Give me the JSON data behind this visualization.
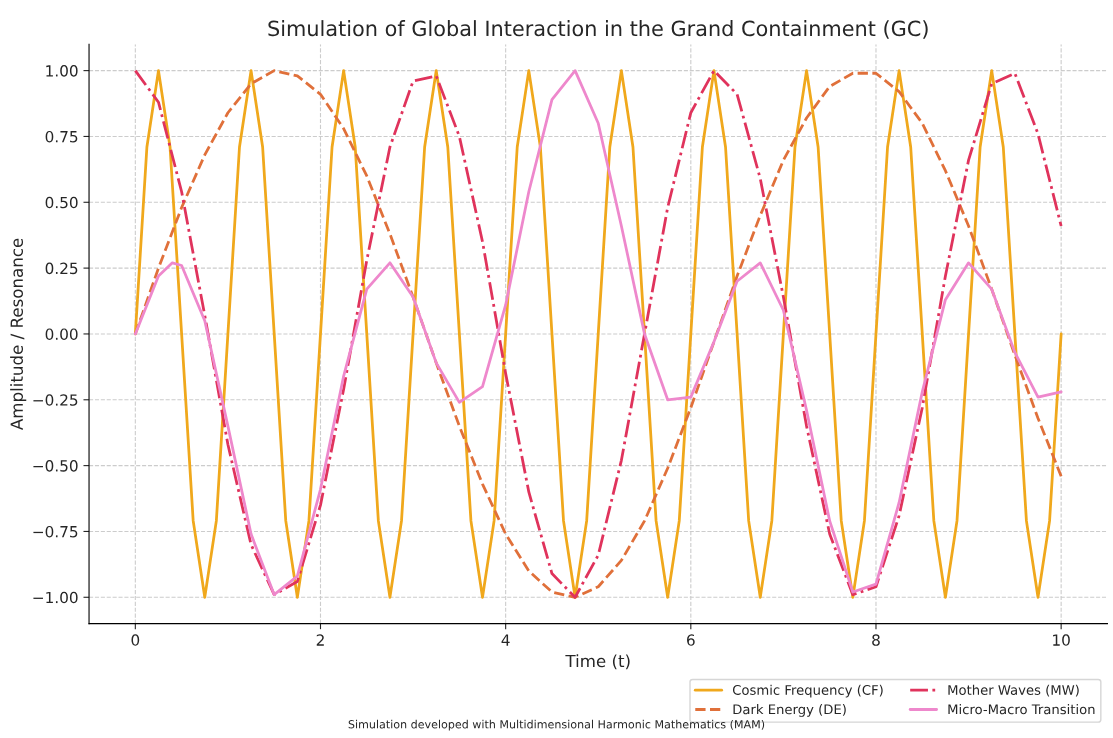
{
  "chart_data": {
    "type": "line",
    "title": "Simulation of Global Interaction in the Grand Containment (GC)",
    "xlabel": "Time (t)",
    "ylabel": "Amplitude / Resonance",
    "annotations": [
      "Simulation developed with Multidimensional Harmonic Mathematics (MAM)"
    ],
    "xlim": [
      -0.5,
      10.5
    ],
    "ylim": [
      -1.1,
      1.1
    ],
    "xticks": [
      0,
      2,
      4,
      6,
      8,
      10
    ],
    "yticks": [
      {
        "value": -1,
        "label": "−1.00"
      },
      {
        "value": -0.75,
        "label": "−0.75"
      },
      {
        "value": -0.5,
        "label": "−0.50"
      },
      {
        "value": -0.25,
        "label": "−0.25"
      },
      {
        "value": 0,
        "label": "0.00"
      },
      {
        "value": 0.25,
        "label": "0.25"
      },
      {
        "value": 0.5,
        "label": "0.50"
      },
      {
        "value": 0.75,
        "label": "0.75"
      },
      {
        "value": 1,
        "label": "1.00"
      }
    ],
    "grid": true,
    "legend": "bottom right",
    "series": [
      {
        "name": "Cosmic Frequency (CF)",
        "color": "#f0a81c",
        "line_style": "solid",
        "x": [
          0,
          0.125,
          0.25,
          0.375,
          0.5,
          0.625,
          0.75,
          0.875,
          1,
          1.125,
          1.25,
          1.375,
          1.5,
          1.625,
          1.75,
          1.875,
          2,
          2.125,
          2.25,
          2.375,
          2.5,
          2.625,
          2.75,
          2.875,
          3,
          3.125,
          3.25,
          3.375,
          3.5,
          3.625,
          3.75,
          3.875,
          4,
          4.125,
          4.25,
          4.375,
          4.5,
          4.625,
          4.75,
          4.875,
          5,
          5.125,
          5.25,
          5.375,
          5.5,
          5.625,
          5.75,
          5.875,
          6,
          6.125,
          6.25,
          6.375,
          6.5,
          6.625,
          6.75,
          6.875,
          7,
          7.125,
          7.25,
          7.375,
          7.5,
          7.625,
          7.75,
          7.875,
          8,
          8.125,
          8.25,
          8.375,
          8.5,
          8.625,
          8.75,
          8.875,
          9,
          9.125,
          9.25,
          9.375,
          9.5,
          9.625,
          9.75,
          9.875,
          10
        ],
        "values": [
          0,
          0.71,
          1,
          0.71,
          0,
          -0.71,
          -1,
          -0.71,
          0,
          0.71,
          1,
          0.71,
          0,
          -0.71,
          -1,
          -0.71,
          0,
          0.71,
          1,
          0.71,
          0,
          -0.71,
          -1,
          -0.71,
          0,
          0.71,
          1,
          0.71,
          0,
          -0.71,
          -1,
          -0.71,
          0,
          0.71,
          1,
          0.71,
          0,
          -0.71,
          -1,
          -0.71,
          0,
          0.71,
          1,
          0.71,
          0,
          -0.71,
          -1,
          -0.71,
          0,
          0.71,
          1,
          0.71,
          0,
          -0.71,
          -1,
          -0.71,
          0,
          0.71,
          1,
          0.71,
          0,
          -0.71,
          -1,
          -0.71,
          0,
          0.71,
          1,
          0.71,
          0,
          -0.71,
          -1,
          -0.71,
          0,
          0.71,
          1,
          0.71,
          0,
          -0.71,
          -1,
          -0.71,
          0
        ]
      },
      {
        "name": "Dark Energy (DE)",
        "color": "#e0703a",
        "line_style": "dashed",
        "x": [
          0,
          0.25,
          0.5,
          0.75,
          1,
          1.25,
          1.5,
          1.75,
          2,
          2.25,
          2.5,
          2.75,
          3,
          3.25,
          3.5,
          3.75,
          4,
          4.25,
          4.5,
          4.75,
          5,
          5.25,
          5.5,
          5.75,
          6,
          6.25,
          6.5,
          6.75,
          7,
          7.25,
          7.5,
          7.75,
          8,
          8.25,
          8.5,
          8.75,
          9,
          9.25,
          9.5,
          9.75,
          10
        ],
        "values": [
          0,
          0.25,
          0.48,
          0.68,
          0.84,
          0.95,
          1.0,
          0.98,
          0.91,
          0.78,
          0.6,
          0.38,
          0.14,
          -0.11,
          -0.35,
          -0.57,
          -0.76,
          -0.9,
          -0.98,
          -1.0,
          -0.96,
          -0.86,
          -0.71,
          -0.51,
          -0.28,
          -0.03,
          0.22,
          0.45,
          0.66,
          0.82,
          0.94,
          0.99,
          0.99,
          0.92,
          0.8,
          0.62,
          0.41,
          0.17,
          -0.08,
          -0.32,
          -0.54
        ]
      },
      {
        "name": "Mother Waves (MW)",
        "color": "#e0335c",
        "line_style": "dashdot",
        "x": [
          0,
          0.25,
          0.5,
          0.75,
          1,
          1.25,
          1.5,
          1.75,
          2,
          2.25,
          2.5,
          2.75,
          3,
          3.25,
          3.5,
          3.75,
          4,
          4.25,
          4.5,
          4.75,
          5,
          5.25,
          5.5,
          5.75,
          6,
          6.25,
          6.5,
          6.75,
          7,
          7.25,
          7.5,
          7.75,
          8,
          8.25,
          8.5,
          8.75,
          9,
          9.25,
          9.5,
          9.75,
          10
        ],
        "values": [
          1,
          0.88,
          0.54,
          0.07,
          -0.42,
          -0.8,
          -0.99,
          -0.94,
          -0.65,
          -0.21,
          0.28,
          0.71,
          0.96,
          0.98,
          0.75,
          0.35,
          -0.15,
          -0.6,
          -0.91,
          -1.0,
          -0.84,
          -0.48,
          0.0,
          0.48,
          0.84,
          1.0,
          0.91,
          0.59,
          0.14,
          -0.35,
          -0.76,
          -0.99,
          -0.96,
          -0.69,
          -0.28,
          0.22,
          0.66,
          0.95,
          0.99,
          0.76,
          0.41
        ]
      },
      {
        "name": "Micro-Macro Transition",
        "color": "#ee88cc",
        "line_style": "solid",
        "x": [
          0,
          0.25,
          0.4,
          0.5,
          0.75,
          1,
          1.25,
          1.5,
          1.75,
          2,
          2.25,
          2.5,
          2.75,
          3,
          3.25,
          3.5,
          3.75,
          4,
          4.25,
          4.5,
          4.75,
          5,
          5.25,
          5.5,
          5.75,
          6,
          6.25,
          6.5,
          6.75,
          7,
          7.25,
          7.5,
          7.75,
          8,
          8.25,
          8.5,
          8.75,
          9,
          9.25,
          9.5,
          9.75,
          10
        ],
        "values": [
          0,
          0.22,
          0.27,
          0.26,
          0.05,
          -0.35,
          -0.76,
          -0.99,
          -0.92,
          -0.59,
          -0.16,
          0.17,
          0.27,
          0.14,
          -0.11,
          -0.26,
          -0.2,
          0.11,
          0.54,
          0.89,
          1.0,
          0.8,
          0.41,
          0.0,
          -0.25,
          -0.24,
          -0.03,
          0.2,
          0.27,
          0.09,
          -0.29,
          -0.71,
          -0.98,
          -0.95,
          -0.64,
          -0.22,
          0.13,
          0.27,
          0.17,
          -0.07,
          -0.24,
          -0.22
        ]
      }
    ]
  }
}
